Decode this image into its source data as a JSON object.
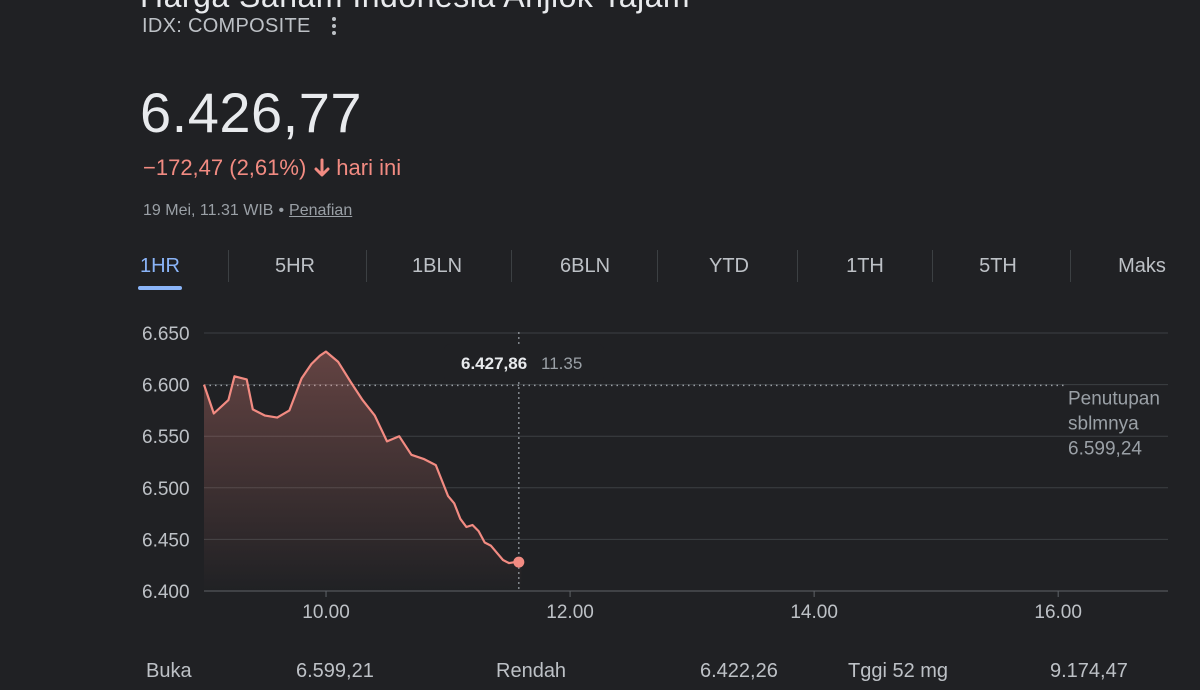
{
  "header": {
    "cut_title": "Harga Saham Indonesia Anjlok Tajam",
    "ticker": "IDX: COMPOSITE",
    "more_icon": "more-vert-icon"
  },
  "quote": {
    "price": "6.426,77",
    "change": "−172,47 (2,61%)",
    "change_suffix": "hari ini",
    "direction_icon": "arrow-down-icon",
    "timestamp": "19 Mei, 11.31 WIB",
    "separator": "•",
    "disclaimer_link": "Penafian"
  },
  "tabs": [
    {
      "label": "1HR",
      "active": true
    },
    {
      "label": "5HR",
      "active": false
    },
    {
      "label": "1BLN",
      "active": false
    },
    {
      "label": "6BLN",
      "active": false
    },
    {
      "label": "YTD",
      "active": false
    },
    {
      "label": "1TH",
      "active": false
    },
    {
      "label": "5TH",
      "active": false
    },
    {
      "label": "Maks",
      "active": false
    }
  ],
  "tooltip": {
    "value": "6.427,86",
    "time": "11.35"
  },
  "prev_close": {
    "line1": "Penutupan",
    "line2": "sblmnya",
    "value": "6.599,24"
  },
  "colors": {
    "line": "#f28b82",
    "accent": "#8ab4f8",
    "background": "#202124"
  },
  "bottom_stats": [
    {
      "label": "Buka",
      "value": "6.599,21"
    },
    {
      "label": "Rendah",
      "value": "6.422,26"
    },
    {
      "label": "Tggi 52 mg",
      "value": "9.174,47"
    }
  ],
  "chart_data": {
    "type": "area",
    "yticks": [
      "6.650",
      "6.600",
      "6.550",
      "6.500",
      "6.450",
      "6.400"
    ],
    "ytick_values": [
      6650,
      6600,
      6550,
      6500,
      6450,
      6400
    ],
    "xticks": [
      "10.00",
      "12.00",
      "14.00",
      "16.00"
    ],
    "xtick_values": [
      10,
      12,
      14,
      16
    ],
    "xlim": [
      9.0,
      16.9
    ],
    "ylim": [
      6400,
      6650
    ],
    "prev_close": 6599.24,
    "cursor_x": 11.58,
    "grid": true,
    "series": [
      {
        "x": [
          9.0,
          9.08,
          9.2,
          9.25,
          9.35,
          9.4,
          9.5,
          9.6,
          9.7,
          9.8,
          9.88,
          9.95,
          10.0,
          10.1,
          10.2,
          10.3,
          10.4,
          10.5,
          10.6,
          10.7,
          10.8,
          10.9,
          11.0,
          11.05,
          11.1,
          11.15,
          11.2,
          11.25,
          11.3,
          11.35,
          11.4,
          11.45,
          11.5,
          11.55,
          11.6
        ],
        "y": [
          6600,
          6572,
          6585,
          6608,
          6605,
          6576,
          6570,
          6568,
          6575,
          6606,
          6620,
          6628,
          6632,
          6622,
          6603,
          6585,
          6570,
          6545,
          6550,
          6532,
          6528,
          6522,
          6492,
          6485,
          6470,
          6462,
          6464,
          6458,
          6447,
          6444,
          6437,
          6430,
          6427,
          6428,
          6428
        ]
      }
    ]
  }
}
